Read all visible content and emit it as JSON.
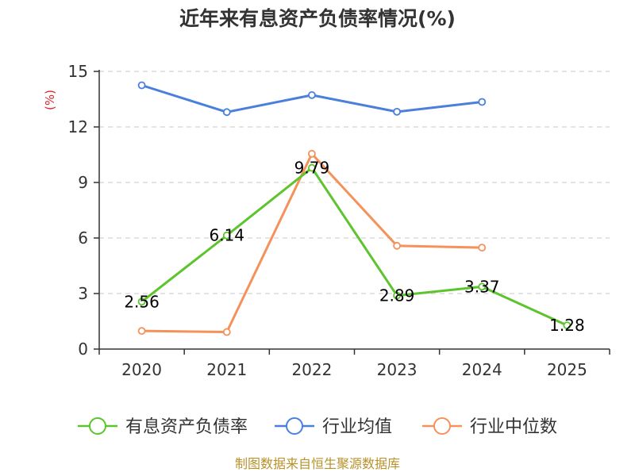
{
  "chart_data": {
    "type": "line",
    "title": "近年来有息资产负债率情况(%)",
    "unit_label": "(%)",
    "categories": [
      "2020",
      "2021",
      "2022",
      "2023",
      "2024",
      "2025"
    ],
    "ylim": [
      0,
      15
    ],
    "yticks": [
      0,
      3,
      6,
      9,
      12,
      15
    ],
    "grid": true,
    "legend_position": "bottom",
    "series": [
      {
        "name": "有息资产负债率",
        "color": "#5cc42c",
        "values": [
          2.56,
          6.14,
          9.79,
          2.89,
          3.37,
          1.28
        ],
        "labels": [
          "2.56",
          "6.14",
          "9.79",
          "2.89",
          "3.37",
          "1.28"
        ]
      },
      {
        "name": "行业均值",
        "color": "#4a7fdc",
        "values": [
          14.25,
          12.8,
          13.72,
          12.82,
          13.35,
          null
        ]
      },
      {
        "name": "行业中位数",
        "color": "#f5915a",
        "values": [
          0.98,
          0.92,
          10.55,
          5.58,
          5.48,
          null
        ]
      }
    ]
  },
  "footer": {
    "source": "制图数据来自恒生聚源数据库"
  }
}
